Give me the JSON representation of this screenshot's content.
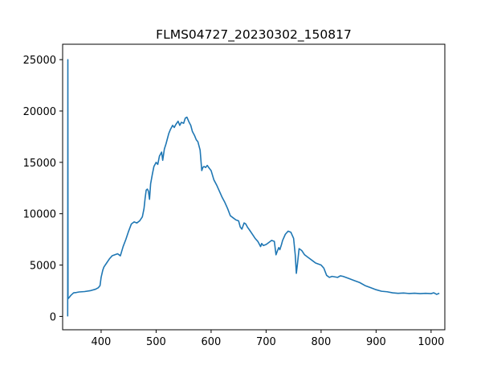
{
  "chart_data": {
    "type": "line",
    "title": "FLMS04727_20230302_150817",
    "xlabel": "",
    "ylabel": "",
    "xlim": [
      330,
      1025
    ],
    "ylim": [
      -1300,
      26500
    ],
    "grid": false,
    "line_color": "#1f77b4",
    "x_ticks": [
      400,
      500,
      600,
      700,
      800,
      900,
      1000
    ],
    "x_tick_labels": [
      "400",
      "500",
      "600",
      "700",
      "800",
      "900",
      "1000"
    ],
    "y_ticks": [
      0,
      5000,
      10000,
      15000,
      20000,
      25000
    ],
    "y_tick_labels": [
      "0",
      "5000",
      "10000",
      "15000",
      "20000",
      "25000"
    ],
    "series": [
      {
        "x": [
          339.2,
          339.5,
          339.8,
          340.5,
          342,
          345,
          348,
          350,
          355,
          360,
          370,
          380,
          390,
          395,
          398,
          400,
          403,
          405,
          410,
          415,
          420,
          425,
          430,
          435,
          440,
          445,
          450,
          455,
          460,
          465,
          470,
          475,
          478,
          480,
          482,
          484,
          486,
          488,
          490,
          493,
          496,
          500,
          503,
          506,
          510,
          512,
          515,
          518,
          520,
          523,
          526,
          530,
          533,
          536,
          540,
          543,
          546,
          550,
          553,
          556,
          560,
          563,
          566,
          570,
          573,
          576,
          580,
          583,
          585,
          587,
          590,
          593,
          597,
          600,
          605,
          610,
          615,
          620,
          625,
          630,
          635,
          640,
          645,
          650,
          653,
          656,
          658,
          660,
          663,
          666,
          670,
          675,
          680,
          685,
          688,
          690,
          692,
          695,
          700,
          705,
          710,
          715,
          718,
          720,
          723,
          725,
          728,
          730,
          735,
          740,
          745,
          750,
          753,
          755,
          757,
          760,
          765,
          770,
          775,
          780,
          785,
          790,
          795,
          800,
          805,
          810,
          815,
          820,
          825,
          830,
          835,
          840,
          845,
          850,
          860,
          870,
          880,
          890,
          900,
          910,
          920,
          930,
          940,
          950,
          960,
          970,
          980,
          990,
          1000,
          1005,
          1010,
          1015
        ],
        "y": [
          0,
          25000,
          1800,
          1750,
          1850,
          2050,
          2200,
          2300,
          2330,
          2380,
          2420,
          2500,
          2650,
          2800,
          3000,
          3800,
          4500,
          4800,
          5200,
          5600,
          5900,
          6000,
          6100,
          5900,
          6800,
          7500,
          8300,
          9000,
          9200,
          9100,
          9300,
          9700,
          10500,
          11500,
          12300,
          12400,
          12200,
          11400,
          12900,
          13800,
          14600,
          15000,
          14800,
          15600,
          16000,
          15200,
          16300,
          16800,
          17200,
          17800,
          18200,
          18600,
          18400,
          18700,
          19000,
          18600,
          18900,
          18800,
          19300,
          19400,
          18900,
          18600,
          18000,
          17600,
          17200,
          17000,
          16200,
          14200,
          14500,
          14600,
          14500,
          14700,
          14400,
          14200,
          13300,
          12800,
          12200,
          11600,
          11100,
          10500,
          9800,
          9600,
          9400,
          9300,
          8700,
          8500,
          8800,
          9100,
          9000,
          8700,
          8400,
          8000,
          7600,
          7300,
          7000,
          6800,
          7100,
          6900,
          7000,
          7200,
          7400,
          7300,
          6000,
          6300,
          6700,
          6500,
          7000,
          7400,
          8000,
          8300,
          8200,
          7600,
          6000,
          4200,
          5100,
          6600,
          6400,
          6000,
          5800,
          5600,
          5400,
          5200,
          5100,
          5000,
          4700,
          4000,
          3800,
          3900,
          3850,
          3800,
          3950,
          3900,
          3800,
          3700,
          3500,
          3300,
          3000,
          2800,
          2600,
          2450,
          2400,
          2300,
          2250,
          2280,
          2230,
          2260,
          2220,
          2250,
          2220,
          2300,
          2150,
          2250
        ]
      }
    ]
  }
}
